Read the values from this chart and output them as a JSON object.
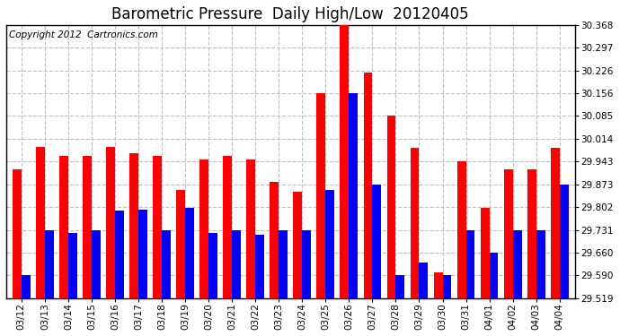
{
  "title": "Barometric Pressure  Daily High/Low  20120405",
  "copyright": "Copyright 2012  Cartronics.com",
  "dates": [
    "03/12",
    "03/13",
    "03/14",
    "03/15",
    "03/16",
    "03/17",
    "03/18",
    "03/19",
    "03/20",
    "03/21",
    "03/22",
    "03/23",
    "03/24",
    "03/25",
    "03/26",
    "03/27",
    "03/28",
    "03/29",
    "03/30",
    "03/31",
    "04/01",
    "04/02",
    "04/03",
    "04/04"
  ],
  "highs": [
    29.92,
    29.99,
    29.96,
    29.96,
    29.99,
    29.97,
    29.96,
    29.855,
    29.95,
    29.96,
    29.95,
    29.88,
    29.85,
    30.156,
    30.368,
    30.22,
    30.085,
    29.985,
    29.6,
    29.943,
    29.8,
    29.92,
    29.92,
    29.985
  ],
  "lows": [
    29.59,
    29.73,
    29.72,
    29.73,
    29.79,
    29.795,
    29.73,
    29.8,
    29.72,
    29.73,
    29.715,
    29.73,
    29.73,
    29.855,
    30.156,
    29.873,
    29.59,
    29.63,
    29.59,
    29.73,
    29.66,
    29.73,
    29.73,
    29.873
  ],
  "high_color": "#ff0000",
  "low_color": "#0000ff",
  "bg_color": "#ffffff",
  "grid_color": "#c0c0c0",
  "ymin": 29.519,
  "ymax": 30.368,
  "yticks": [
    29.519,
    29.59,
    29.66,
    29.731,
    29.802,
    29.873,
    29.943,
    30.014,
    30.085,
    30.156,
    30.226,
    30.297,
    30.368
  ],
  "bar_width": 0.38,
  "title_fontsize": 12,
  "tick_fontsize": 7.5,
  "copyright_fontsize": 7.5
}
